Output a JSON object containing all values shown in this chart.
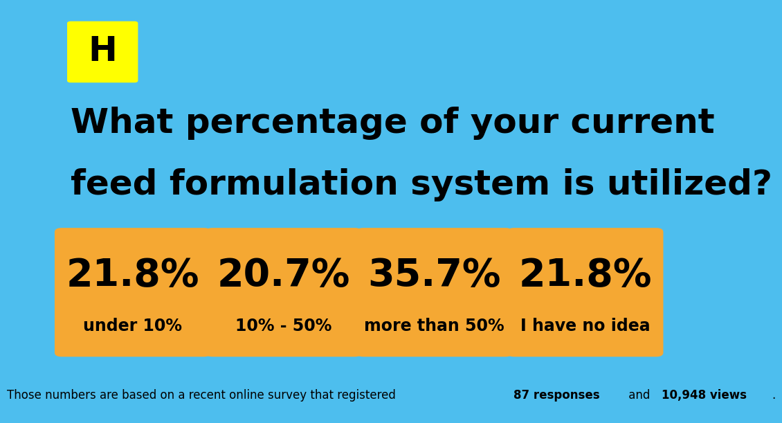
{
  "background_color": "#4DBEEE",
  "title_line1": "What percentage of your current",
  "title_line2": "feed formulation system is utilized?",
  "title_color": "#000000",
  "title_fontsize": 36,
  "title_fontweight": "bold",
  "cards": [
    {
      "percentage": "21.8%",
      "label": "under 10%"
    },
    {
      "percentage": "20.7%",
      "label": "10% - 50%"
    },
    {
      "percentage": "35.7%",
      "label": "more than 50%"
    },
    {
      "percentage": "21.8%",
      "label": "I have no idea"
    }
  ],
  "card_color": "#F5A833",
  "card_text_color": "#000000",
  "percentage_fontsize": 40,
  "label_fontsize": 17,
  "logo_bg_color": "#FFFF00",
  "logo_text": "H",
  "logo_color": "#000000",
  "logo_fontsize": 36,
  "footer_part1": "Those numbers are based on a recent online survey that registered ",
  "footer_bold1": "87 responses",
  "footer_part2": " and ",
  "footer_bold2": "10,948 views",
  "footer_part3": ".",
  "footer_fontsize": 12,
  "footer_color": "#000000"
}
